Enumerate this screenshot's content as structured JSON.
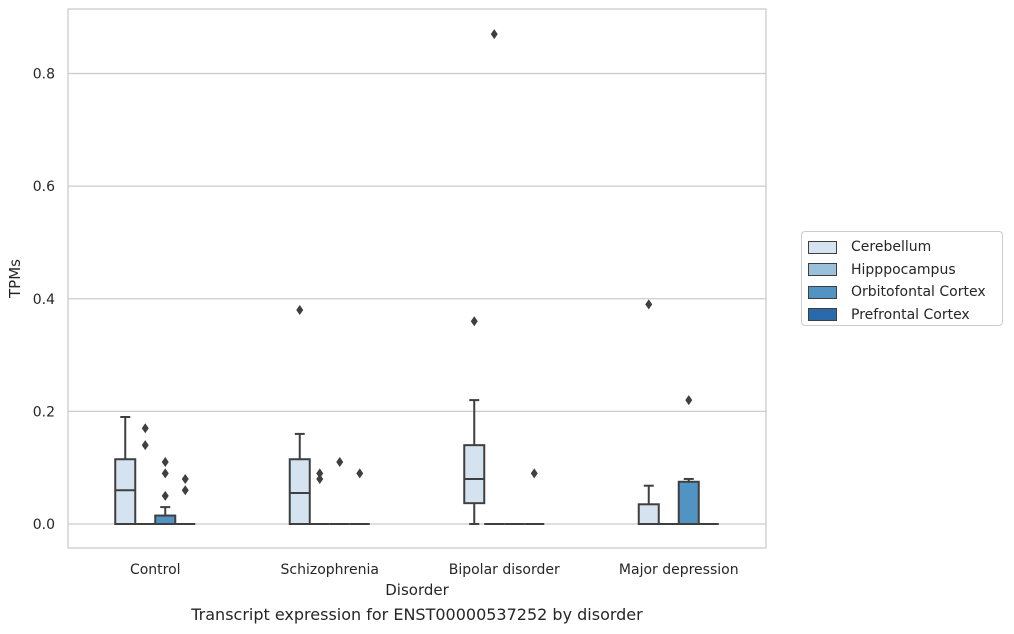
{
  "caption": "Transcript expression for ENST00000537252 by disorder",
  "chart_data": {
    "type": "boxplot",
    "xlabel": "Disorder",
    "ylabel": "TPMs",
    "ylim": [
      -0.042,
      0.917
    ],
    "yticks": [
      "0.0",
      "0.2",
      "0.4",
      "0.6",
      "0.8"
    ],
    "grid": "horizontal",
    "legend_position": "right",
    "categories": [
      "Control",
      "Schizophrenia",
      "Bipolar disorder",
      "Major depression"
    ],
    "series": [
      {
        "name": "Cerebellum",
        "color": "#d5e3f1",
        "boxes": [
          {
            "q1": 0.0,
            "median": 0.06,
            "q3": 0.115,
            "whisker_low": 0.0,
            "whisker_high": 0.19,
            "outliers": []
          },
          {
            "q1": 0.0,
            "median": 0.055,
            "q3": 0.115,
            "whisker_low": 0.0,
            "whisker_high": 0.16,
            "outliers": [
              0.38
            ]
          },
          {
            "q1": 0.037,
            "median": 0.08,
            "q3": 0.14,
            "whisker_low": 0.0,
            "whisker_high": 0.22,
            "outliers": [
              0.36
            ]
          },
          {
            "q1": 0.0,
            "median": 0.0,
            "q3": 0.035,
            "whisker_low": 0.0,
            "whisker_high": 0.068,
            "outliers": [
              0.39
            ]
          }
        ]
      },
      {
        "name": "Hipppocampus",
        "color": "#9ac0db",
        "boxes": [
          {
            "q1": 0.0,
            "median": 0.0,
            "q3": 0.0,
            "whisker_low": 0.0,
            "whisker_high": 0.0,
            "outliers": [
              0.17,
              0.14
            ]
          },
          {
            "q1": 0.0,
            "median": 0.0,
            "q3": 0.0,
            "whisker_low": 0.0,
            "whisker_high": 0.0,
            "outliers": [
              0.09,
              0.08
            ]
          },
          {
            "q1": 0.0,
            "median": 0.0,
            "q3": 0.0,
            "whisker_low": 0.0,
            "whisker_high": 0.0,
            "outliers": [
              0.87
            ]
          },
          {
            "q1": 0.0,
            "median": 0.0,
            "q3": 0.0,
            "whisker_low": 0.0,
            "whisker_high": 0.0,
            "outliers": []
          }
        ]
      },
      {
        "name": "Orbitofontal Cortex",
        "color": "#5194c3",
        "boxes": [
          {
            "q1": 0.0,
            "median": 0.0,
            "q3": 0.015,
            "whisker_low": 0.0,
            "whisker_high": 0.03,
            "outliers": [
              0.11,
              0.09,
              0.05
            ]
          },
          {
            "q1": 0.0,
            "median": 0.0,
            "q3": 0.0,
            "whisker_low": 0.0,
            "whisker_high": 0.0,
            "outliers": [
              0.11
            ]
          },
          {
            "q1": 0.0,
            "median": 0.0,
            "q3": 0.0,
            "whisker_low": 0.0,
            "whisker_high": 0.0,
            "outliers": []
          },
          {
            "q1": 0.0,
            "median": 0.0,
            "q3": 0.075,
            "whisker_low": 0.0,
            "whisker_high": 0.08,
            "outliers": [
              0.22
            ]
          }
        ]
      },
      {
        "name": "Prefrontal Cortex",
        "color": "#2a6aab",
        "boxes": [
          {
            "q1": 0.0,
            "median": 0.0,
            "q3": 0.0,
            "whisker_low": 0.0,
            "whisker_high": 0.0,
            "outliers": [
              0.08,
              0.06
            ]
          },
          {
            "q1": 0.0,
            "median": 0.0,
            "q3": 0.0,
            "whisker_low": 0.0,
            "whisker_high": 0.0,
            "outliers": [
              0.09
            ]
          },
          {
            "q1": 0.0,
            "median": 0.0,
            "q3": 0.0,
            "whisker_low": 0.0,
            "whisker_high": 0.0,
            "outliers": [
              0.09
            ]
          },
          {
            "q1": 0.0,
            "median": 0.0,
            "q3": 0.0,
            "whisker_low": 0.0,
            "whisker_high": 0.0,
            "outliers": []
          }
        ]
      }
    ]
  }
}
